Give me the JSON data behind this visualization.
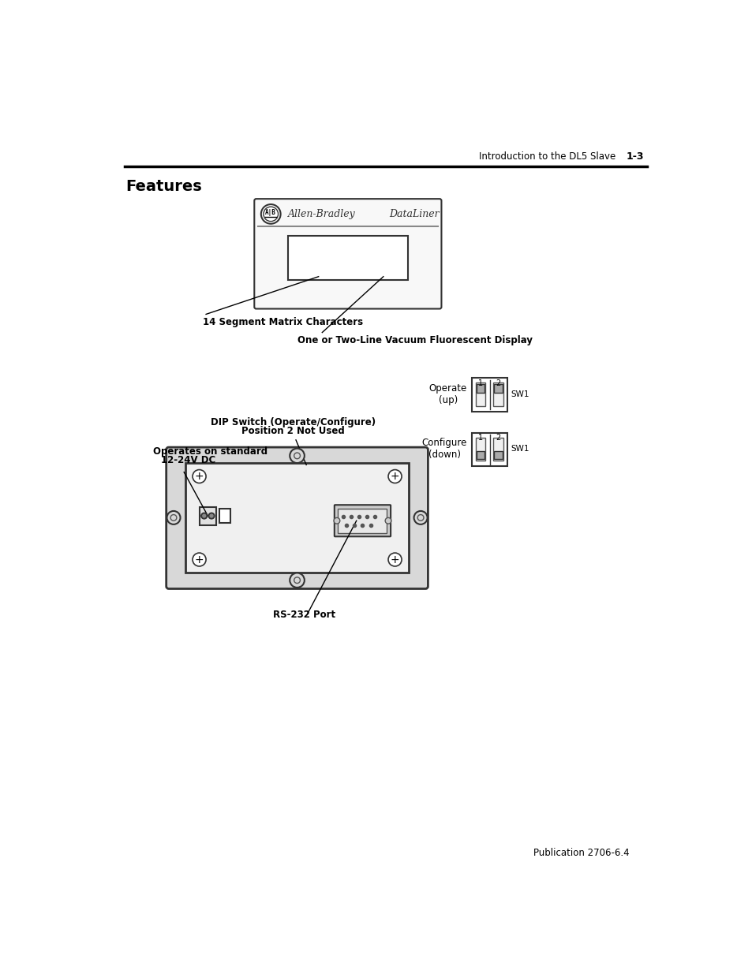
{
  "background_color": "#ffffff",
  "header_text": "Introduction to the DL5 Slave",
  "header_page": "1-3",
  "title": "Features",
  "footer_text": "Publication 2706-6.4",
  "label_14seg": "14 Segment Matrix Characters",
  "label_display": "One or Two-Line Vacuum Fluorescent Display",
  "label_dip_line1": "DIP Switch (Operate/Configure)",
  "label_dip_line2": "Position 2 Not Used",
  "label_voltage_line1": "Operates on standard",
  "label_voltage_line2": "12-24V DC",
  "label_rs232": "RS-232 Port",
  "label_operate": "Operate\n(up)",
  "label_configure": "Configure\n(down)",
  "label_sw1": "SW1"
}
